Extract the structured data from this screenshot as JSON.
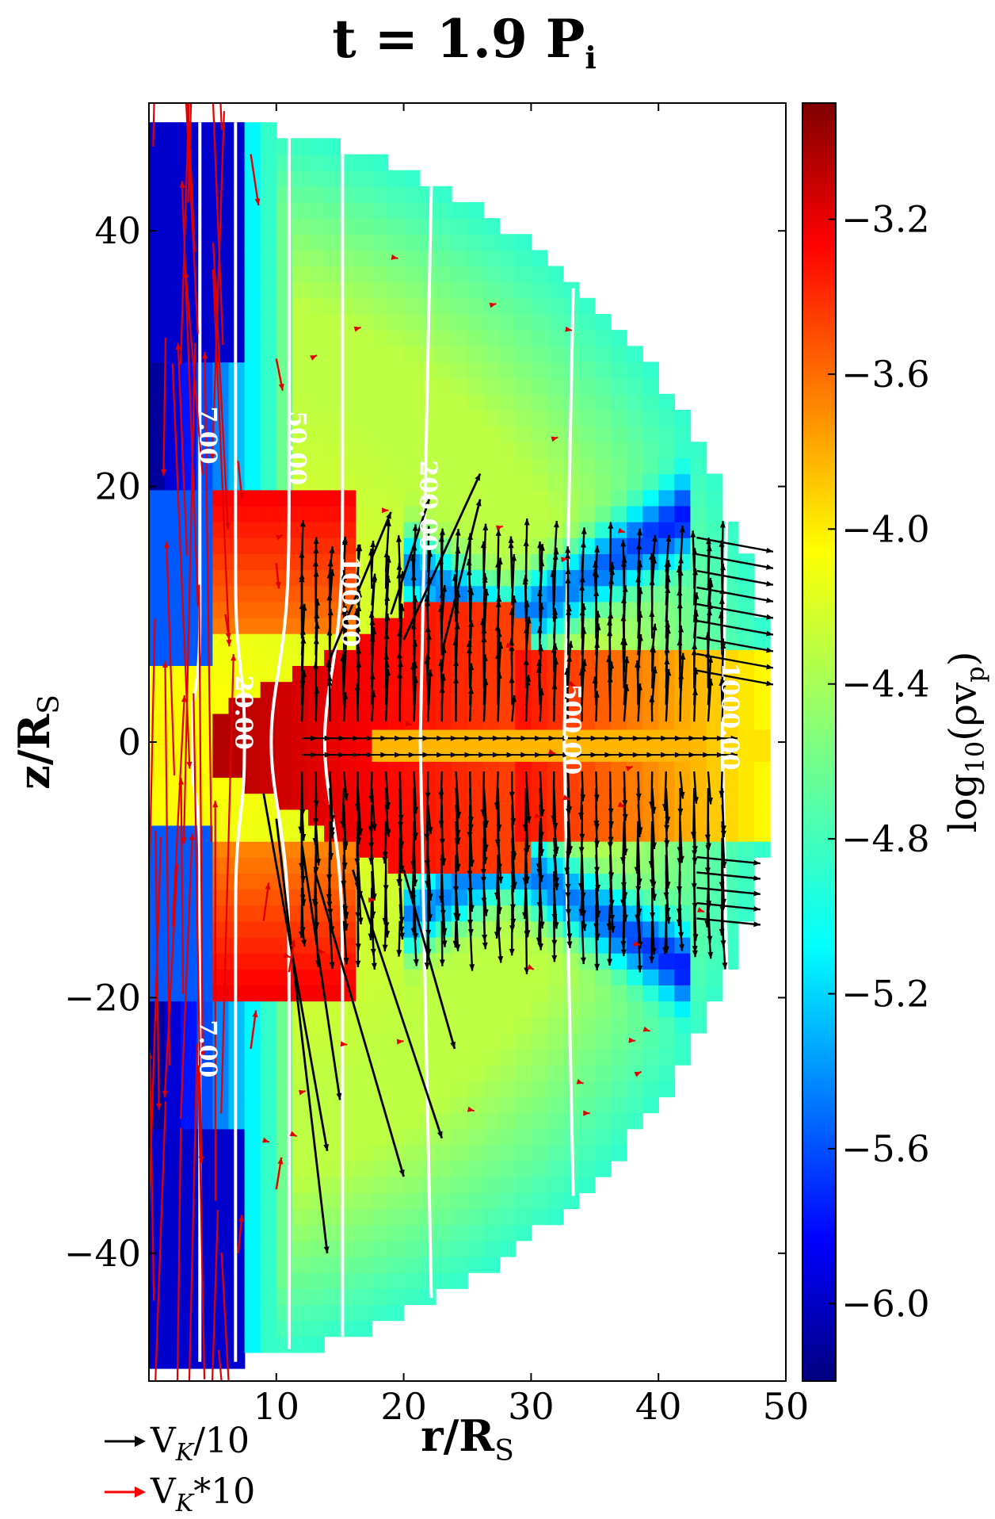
{
  "chart_data": {
    "type": "heatmap",
    "title": "t = 1.9 P",
    "title_subscript": "i",
    "xlabel": "r/R",
    "xlabel_subscript": "S",
    "ylabel": "z/R",
    "ylabel_subscript": "S",
    "xlim": [
      0,
      50
    ],
    "ylim": [
      -50,
      50
    ],
    "x_ticks": [
      10,
      20,
      30,
      40,
      50
    ],
    "x_tick_labels": [
      "10",
      "20",
      "30",
      "40",
      "50"
    ],
    "y_ticks": [
      -40,
      -20,
      0,
      20,
      40
    ],
    "y_tick_labels": [
      "−40",
      "−20",
      "0",
      "20",
      "40"
    ],
    "domain_shape": "half-disk of radius 49 centred at r=0, z=0",
    "colorbar": {
      "label": "log",
      "label_sub": "10",
      "label_tail": "(ρv",
      "label_tail_sub": "p",
      "label_close": ")",
      "range": [
        -6.2,
        -2.9
      ],
      "colormap": "jet",
      "ticks": [
        -3.2,
        -3.6,
        -4.0,
        -4.4,
        -4.8,
        -5.2,
        -5.6,
        -6.0
      ],
      "tick_labels": [
        "−3.2",
        "−3.6",
        "−4.0",
        "−4.4",
        "−4.8",
        "−5.2",
        "−5.6",
        "−6.0"
      ]
    },
    "density_features": {
      "jet_core": {
        "value": -2.95,
        "region": "wedge r≈5–30, |z|<10"
      },
      "disk_plane": {
        "value": -3.4,
        "region": "wedge r≈30–48, |z|<7"
      },
      "midplane_stripe": {
        "value": -4.0,
        "region": "|z|<1, r≈18–40"
      },
      "low_density_bands": [
        {
          "value": -5.6,
          "region": "V-shaped bands near r≈25–40, |z|≈20–35"
        }
      ],
      "polar_axis": {
        "value": -6.0,
        "region": "r<8, |z|>30"
      },
      "outer_shell": {
        "value": -4.7,
        "region": "r≈40–49"
      }
    },
    "contours": [
      {
        "label": "7.00",
        "r_at_top": 4.0
      },
      {
        "label": "20.00",
        "r_at_top": 6.8
      },
      {
        "label": "50.00",
        "r_at_top": 11.0
      },
      {
        "label": "100.00",
        "r_at_top": 15.2
      },
      {
        "label": "200.00",
        "r_at_top": 21.3
      },
      {
        "label": "500.00",
        "r_at_top": 32.6
      },
      {
        "label": "1000.00",
        "r_at_top": 45.0
      }
    ],
    "legend": {
      "position": "bottom-left",
      "entries": [
        {
          "label": "V",
          "sub": "K",
          "tail": "/10",
          "color": "#000000"
        },
        {
          "label": "V",
          "sub": "K",
          "tail": "*10",
          "color": "#ff0000"
        }
      ]
    },
    "colors": {
      "black_arrows": "#000000",
      "red_arrows": "#e00000",
      "contours": "#ffffff"
    }
  }
}
